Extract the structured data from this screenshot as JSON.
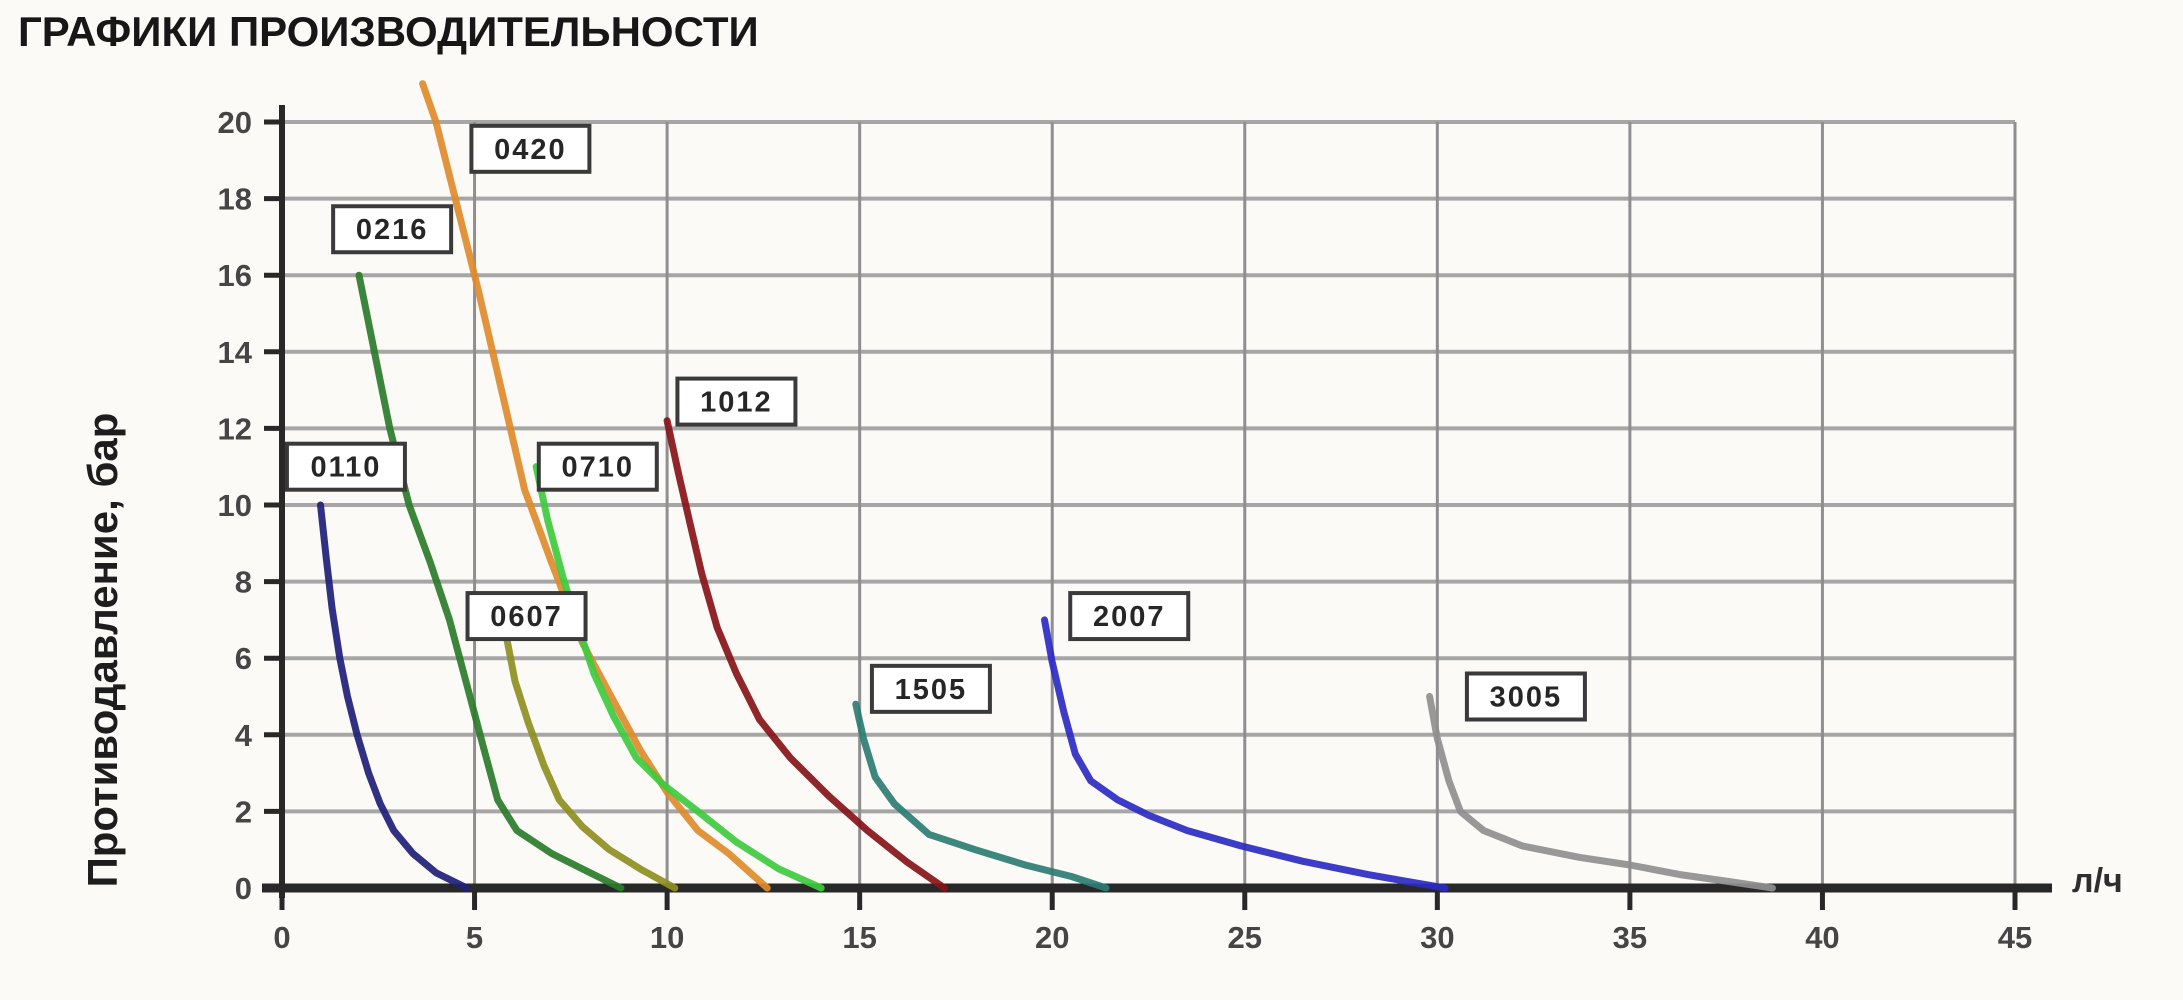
{
  "page": {
    "title": "ГРАФИКИ ПРОИЗВОДИТЕЛЬНОСТИ"
  },
  "axes": {
    "y_title": "Противодавление, бар",
    "x_unit": "л/ч"
  },
  "style": {
    "background": "#fbfaf7",
    "grid_color_h": "#a6a6a6",
    "grid_color_v": "#8f8f8f",
    "axis_color": "#282828",
    "tick_label_color": "#454545",
    "label_box_fill": "#ffffff",
    "label_box_border": "#3a3a3a",
    "label_text_color": "#262626"
  },
  "chart_data": {
    "type": "line",
    "title": "ГРАФИКИ ПРОИЗВОДИТЕЛЬНОСТИ",
    "xlabel": "л/ч",
    "ylabel": "Противодавление, бар",
    "xlim": [
      0,
      45
    ],
    "ylim": [
      0,
      20
    ],
    "x_ticks": [
      0,
      5,
      10,
      15,
      20,
      25,
      30,
      35,
      40,
      45
    ],
    "y_ticks": [
      0,
      2,
      4,
      6,
      8,
      10,
      12,
      14,
      16,
      18,
      20
    ],
    "grid": true,
    "legend_position": "boxed labels next to each curve",
    "series": [
      {
        "name": "0110",
        "color": "#20207a",
        "label_at": [
          1.66,
          11.0
        ],
        "points": [
          [
            1,
            10
          ],
          [
            1.15,
            8.6
          ],
          [
            1.3,
            7.3
          ],
          [
            1.5,
            6
          ],
          [
            1.7,
            5
          ],
          [
            1.95,
            4
          ],
          [
            2.25,
            3
          ],
          [
            2.55,
            2.2
          ],
          [
            2.9,
            1.5
          ],
          [
            3.4,
            0.9
          ],
          [
            4,
            0.4
          ],
          [
            4.8,
            0
          ]
        ]
      },
      {
        "name": "0216",
        "color": "#2a7c2a",
        "label_at": [
          2.86,
          17.2
        ],
        "points": [
          [
            2,
            16
          ],
          [
            2.4,
            14
          ],
          [
            2.8,
            12
          ],
          [
            3.3,
            10
          ],
          [
            3.85,
            8.5
          ],
          [
            4.35,
            7
          ],
          [
            4.8,
            5.3
          ],
          [
            5.25,
            3.6
          ],
          [
            5.6,
            2.3
          ],
          [
            6.1,
            1.5
          ],
          [
            7,
            0.9
          ],
          [
            8,
            0.4
          ],
          [
            8.8,
            0
          ]
        ]
      },
      {
        "name": "0420",
        "color": "#df8b2b",
        "label_at": [
          6.45,
          19.3
        ],
        "points": [
          [
            3.65,
            21
          ],
          [
            4,
            20
          ],
          [
            4.5,
            18
          ],
          [
            5.1,
            15.6
          ],
          [
            5.7,
            13
          ],
          [
            6.3,
            10.4
          ],
          [
            7,
            8.5
          ],
          [
            7.8,
            6.4
          ],
          [
            8.6,
            4.9
          ],
          [
            9.3,
            3.6
          ],
          [
            10,
            2.5
          ],
          [
            10.8,
            1.5
          ],
          [
            11.6,
            0.9
          ],
          [
            12.6,
            0
          ]
        ]
      },
      {
        "name": "0607",
        "color": "#8f8f22",
        "label_at": [
          6.35,
          7.1
        ],
        "points": [
          [
            5.8,
            6.7
          ],
          [
            6.05,
            5.4
          ],
          [
            6.4,
            4.3
          ],
          [
            6.8,
            3.2
          ],
          [
            7.2,
            2.3
          ],
          [
            7.8,
            1.6
          ],
          [
            8.5,
            1.0
          ],
          [
            9.3,
            0.5
          ],
          [
            10.2,
            0
          ]
        ]
      },
      {
        "name": "0710",
        "color": "#3ecb3e",
        "label_at": [
          8.2,
          11.0
        ],
        "points": [
          [
            6.6,
            11
          ],
          [
            6.9,
            9.6
          ],
          [
            7.3,
            8.1
          ],
          [
            7.7,
            6.8
          ],
          [
            8.1,
            5.6
          ],
          [
            8.6,
            4.5
          ],
          [
            9.2,
            3.4
          ],
          [
            9.9,
            2.7
          ],
          [
            10.8,
            2
          ],
          [
            11.8,
            1.2
          ],
          [
            12.9,
            0.5
          ],
          [
            14,
            0
          ]
        ]
      },
      {
        "name": "1012",
        "color": "#871418",
        "label_at": [
          11.8,
          12.7
        ],
        "points": [
          [
            10,
            12.2
          ],
          [
            10.3,
            10.8
          ],
          [
            10.6,
            9.5
          ],
          [
            10.9,
            8.2
          ],
          [
            11.3,
            6.8
          ],
          [
            11.8,
            5.6
          ],
          [
            12.4,
            4.4
          ],
          [
            13.2,
            3.4
          ],
          [
            14.2,
            2.4
          ],
          [
            15.2,
            1.5
          ],
          [
            16.2,
            0.7
          ],
          [
            17.2,
            0
          ]
        ]
      },
      {
        "name": "1505",
        "color": "#2d7d74",
        "label_at": [
          16.85,
          5.2
        ],
        "points": [
          [
            14.9,
            4.8
          ],
          [
            15.1,
            3.9
          ],
          [
            15.4,
            2.9
          ],
          [
            15.9,
            2.2
          ],
          [
            16.8,
            1.4
          ],
          [
            18,
            1
          ],
          [
            19.3,
            0.6
          ],
          [
            20.5,
            0.3
          ],
          [
            21.4,
            0
          ]
        ]
      },
      {
        "name": "2007",
        "color": "#2b2bc4",
        "label_at": [
          22.0,
          7.1
        ],
        "points": [
          [
            19.8,
            7
          ],
          [
            20,
            5.9
          ],
          [
            20.3,
            4.6
          ],
          [
            20.6,
            3.5
          ],
          [
            21,
            2.8
          ],
          [
            21.7,
            2.3
          ],
          [
            22.5,
            1.9
          ],
          [
            23.5,
            1.5
          ],
          [
            24.9,
            1.1
          ],
          [
            26.5,
            0.7
          ],
          [
            28.2,
            0.35
          ],
          [
            30.2,
            0
          ]
        ]
      },
      {
        "name": "3005",
        "color": "#8f8f8f",
        "label_at": [
          32.3,
          5.0
        ],
        "points": [
          [
            29.8,
            5
          ],
          [
            30,
            3.9
          ],
          [
            30.3,
            2.8
          ],
          [
            30.6,
            2
          ],
          [
            31.2,
            1.5
          ],
          [
            32.2,
            1.1
          ],
          [
            33.7,
            0.8
          ],
          [
            35,
            0.6
          ],
          [
            36.3,
            0.35
          ],
          [
            37.5,
            0.18
          ],
          [
            38.7,
            0
          ]
        ]
      }
    ]
  }
}
